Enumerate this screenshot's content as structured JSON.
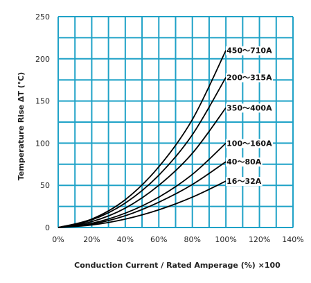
{
  "chart_data": {
    "type": "line",
    "title": "",
    "xlabel": "Conduction Current / Rated Amperage (%) ×100",
    "ylabel": "Temperature Rise ΔT (℃)",
    "xlim": [
      0,
      140
    ],
    "ylim": [
      0,
      250
    ],
    "x_ticks": [
      0,
      20,
      40,
      60,
      80,
      100,
      120,
      140
    ],
    "x_tick_labels": [
      "0%",
      "20%",
      "40%",
      "60%",
      "80%",
      "100%",
      "120%",
      "140%"
    ],
    "y_ticks": [
      0,
      50,
      100,
      150,
      200,
      250
    ],
    "y_tick_labels": [
      "0",
      "50",
      "100",
      "150",
      "200",
      "250"
    ],
    "grid": true,
    "grid_color": "#1fa2c7",
    "series_color": "#000000",
    "series": [
      {
        "name": "450～710A",
        "x": [
          0,
          20,
          40,
          60,
          80,
          100
        ],
        "y": [
          0,
          10,
          33,
          72,
          128,
          210
        ]
      },
      {
        "name": "200～315A",
        "x": [
          0,
          20,
          40,
          60,
          80,
          100
        ],
        "y": [
          0,
          9,
          29,
          62,
          110,
          178
        ]
      },
      {
        "name": "350～400A",
        "x": [
          0,
          20,
          40,
          60,
          80,
          100
        ],
        "y": [
          0,
          7,
          23,
          50,
          88,
          142
        ]
      },
      {
        "name": "100～160A",
        "x": [
          0,
          20,
          40,
          60,
          80,
          100
        ],
        "y": [
          0,
          5,
          17,
          36,
          63,
          100
        ]
      },
      {
        "name": "40～80A",
        "x": [
          0,
          20,
          40,
          60,
          80,
          100
        ],
        "y": [
          0,
          4,
          14,
          30,
          51,
          78
        ]
      },
      {
        "name": "16～32A",
        "x": [
          0,
          20,
          40,
          60,
          80,
          100
        ],
        "y": [
          0,
          3,
          10,
          21,
          36,
          55
        ]
      }
    ]
  }
}
